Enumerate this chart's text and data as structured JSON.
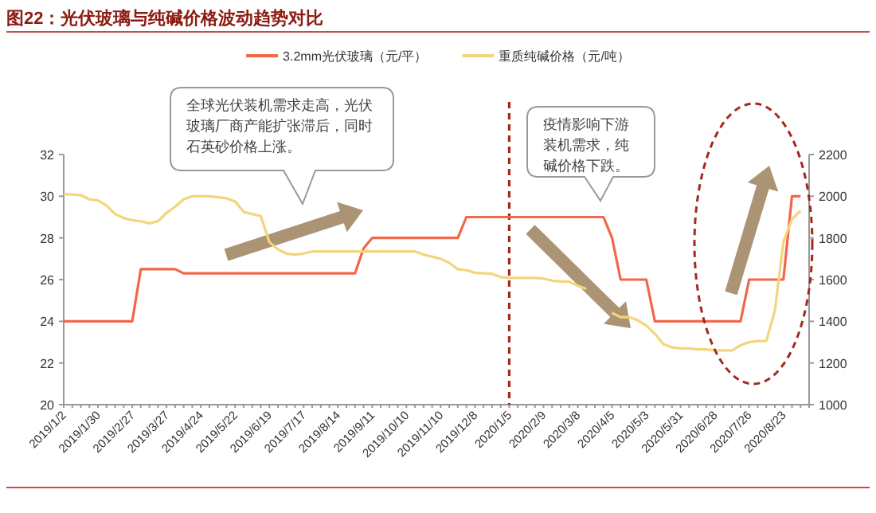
{
  "chart_data": {
    "type": "line",
    "title": "图22：光伏玻璃与纯碱价格波动趋势对比",
    "categories": [
      "2019/1/2",
      null,
      null,
      null,
      "2019/1/30",
      null,
      null,
      null,
      "2019/2/27",
      null,
      null,
      null,
      "2019/3/27",
      null,
      null,
      null,
      "2019/4/24",
      null,
      null,
      null,
      "2019/5/22",
      null,
      null,
      null,
      "2019/6/19",
      null,
      null,
      null,
      "2019/7/17",
      null,
      null,
      null,
      "2019/8/14",
      null,
      null,
      null,
      "2019/9/11",
      null,
      null,
      null,
      "2019/10/10",
      null,
      null,
      null,
      "2019/11/10",
      null,
      null,
      null,
      "2019/12/8",
      null,
      null,
      null,
      "2020/1/5",
      null,
      null,
      null,
      "2020/2/9",
      null,
      null,
      null,
      "2020/3/8",
      null,
      null,
      null,
      "2020/4/5",
      null,
      null,
      null,
      "2020/5/3",
      null,
      null,
      null,
      "2020/5/31",
      null,
      null,
      null,
      "2020/6/28",
      null,
      null,
      null,
      "2020/7/26",
      null,
      null,
      null,
      "2020/8/23",
      null,
      null
    ],
    "series": [
      {
        "name": "3.2mm光伏玻璃（元/平）",
        "color": "#f0674a",
        "axis": "y",
        "values": [
          24,
          24,
          24,
          24,
          24,
          24,
          24,
          24,
          24,
          26.5,
          26.5,
          26.5,
          26.5,
          26.5,
          26.3,
          26.3,
          26.3,
          26.3,
          26.3,
          26.3,
          26.3,
          26.3,
          26.3,
          26.3,
          26.3,
          26.3,
          26.3,
          26.3,
          26.3,
          26.3,
          26.3,
          26.3,
          26.3,
          26.3,
          26.3,
          27.5,
          28,
          28,
          28,
          28,
          28,
          28,
          28,
          28,
          28,
          28,
          28,
          29,
          29,
          29,
          29,
          29,
          29,
          29,
          29,
          29,
          29,
          29,
          29,
          29,
          29,
          29,
          29,
          29,
          28,
          26,
          26,
          26,
          26,
          24,
          24,
          24,
          24,
          24,
          24,
          24,
          24,
          24,
          24,
          24,
          26,
          26,
          26,
          26,
          26,
          30,
          30
        ]
      },
      {
        "name": "重质纯碱价格（元/吨）",
        "color": "#f3d57c",
        "axis": "y2",
        "values": [
          2010,
          2008,
          2005,
          1985,
          1980,
          1955,
          1915,
          1895,
          1885,
          1880,
          1870,
          1880,
          1920,
          1950,
          1985,
          2000,
          2000,
          2000,
          1995,
          1990,
          1975,
          1925,
          1915,
          1905,
          1780,
          1745,
          1725,
          1720,
          1725,
          1735,
          1735,
          1735,
          1735,
          1735,
          1735,
          1735,
          1735,
          1735,
          1735,
          1735,
          1735,
          1735,
          1720,
          1710,
          1700,
          1680,
          1650,
          1645,
          1633,
          1630,
          1628,
          1612,
          1608,
          1608,
          1608,
          1608,
          1605,
          1595,
          1592,
          1590,
          1570,
          1555,
          null,
          null,
          1440,
          1420,
          1420,
          1405,
          1380,
          1340,
          1290,
          1275,
          1270,
          1270,
          1265,
          1265,
          1260,
          1260,
          1260,
          1285,
          1300,
          1305,
          1305,
          1450,
          1780,
          1890,
          1930
        ]
      }
    ],
    "ylim": [
      20,
      32
    ],
    "yticks": [
      20,
      22,
      24,
      26,
      28,
      30,
      32
    ],
    "y2lim": [
      1000,
      2200
    ],
    "y2ticks": [
      1000,
      1200,
      1400,
      1600,
      1800,
      2000,
      2200
    ],
    "legend": "top",
    "grid": false,
    "ref_lines": [
      {
        "axis": "x",
        "value": "2020/1/5",
        "color": "#a3291b",
        "line_style": "dashed"
      }
    ],
    "annotations": [
      "全球光伏装机需求走高，光伏玻璃厂商产能扩张滞后，同时石英砂价格上涨。",
      "疫情影响下游装机需求，纯碱价格下跌。"
    ]
  }
}
